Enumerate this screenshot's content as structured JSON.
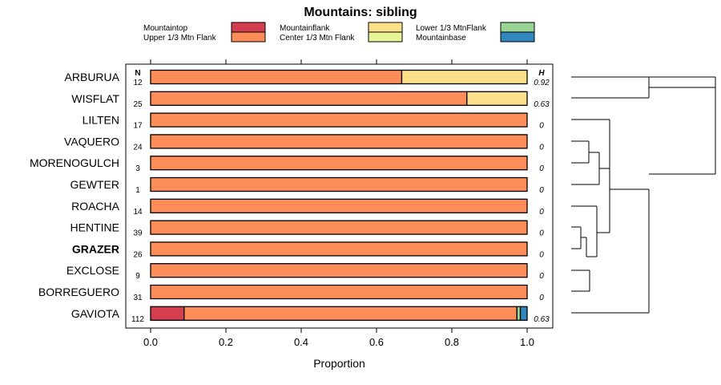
{
  "chart_data": {
    "type": "bar",
    "title": "Mountains: sibling",
    "xlabel": "Proportion",
    "xlim": [
      0,
      1
    ],
    "xticks": [
      0.0,
      0.2,
      0.4,
      0.6,
      0.8,
      1.0
    ],
    "xtick_labels": [
      "0.0",
      "0.2",
      "0.4",
      "0.6",
      "0.8",
      "1.0"
    ],
    "n_header": "N",
    "h_header": "H",
    "legend": [
      {
        "name": "Mountaintop",
        "color": "#d53e4f"
      },
      {
        "name": "Upper 1/3 Mtn Flank",
        "color": "#fc8d59"
      },
      {
        "name": "Mountainflank",
        "color": "#fee08b"
      },
      {
        "name": "Center 1/3 Mtn Flank",
        "color": "#e6f598"
      },
      {
        "name": "Lower 1/3 MtnFlank",
        "color": "#99d594"
      },
      {
        "name": "Mountainbase",
        "color": "#3288bd"
      }
    ],
    "rows": [
      {
        "label": "ARBURUA",
        "n": "12",
        "h": "0.92",
        "bold": false,
        "values": [
          0,
          0.667,
          0.333,
          0,
          0,
          0
        ]
      },
      {
        "label": "WISFLAT",
        "n": "25",
        "h": "0.63",
        "bold": false,
        "values": [
          0,
          0.84,
          0.16,
          0,
          0,
          0
        ]
      },
      {
        "label": "LILTEN",
        "n": "17",
        "h": "0",
        "bold": false,
        "values": [
          0,
          1,
          0,
          0,
          0,
          0
        ]
      },
      {
        "label": "VAQUERO",
        "n": "24",
        "h": "0",
        "bold": false,
        "values": [
          0,
          1,
          0,
          0,
          0,
          0
        ]
      },
      {
        "label": "MORENOGULCH",
        "n": "3",
        "h": "0",
        "bold": false,
        "values": [
          0,
          1,
          0,
          0,
          0,
          0
        ]
      },
      {
        "label": "GEWTER",
        "n": "1",
        "h": "0",
        "bold": false,
        "values": [
          0,
          1,
          0,
          0,
          0,
          0
        ]
      },
      {
        "label": "ROACHA",
        "n": "14",
        "h": "0",
        "bold": false,
        "values": [
          0,
          1,
          0,
          0,
          0,
          0
        ]
      },
      {
        "label": "HENTINE",
        "n": "39",
        "h": "0",
        "bold": false,
        "values": [
          0,
          1,
          0,
          0,
          0,
          0
        ]
      },
      {
        "label": "GRAZER",
        "n": "26",
        "h": "0",
        "bold": true,
        "values": [
          0,
          1,
          0,
          0,
          0,
          0
        ]
      },
      {
        "label": "EXCLOSE",
        "n": "9",
        "h": "0",
        "bold": false,
        "values": [
          0,
          1,
          0,
          0,
          0,
          0
        ]
      },
      {
        "label": "BORREGUERO",
        "n": "31",
        "h": "0",
        "bold": false,
        "values": [
          0,
          1,
          0,
          0,
          0,
          0
        ]
      },
      {
        "label": "GAVIOTA",
        "n": "112",
        "h": "0.63",
        "bold": false,
        "values": [
          0.089,
          0.884,
          0,
          0,
          0.009,
          0.018
        ]
      }
    ]
  }
}
